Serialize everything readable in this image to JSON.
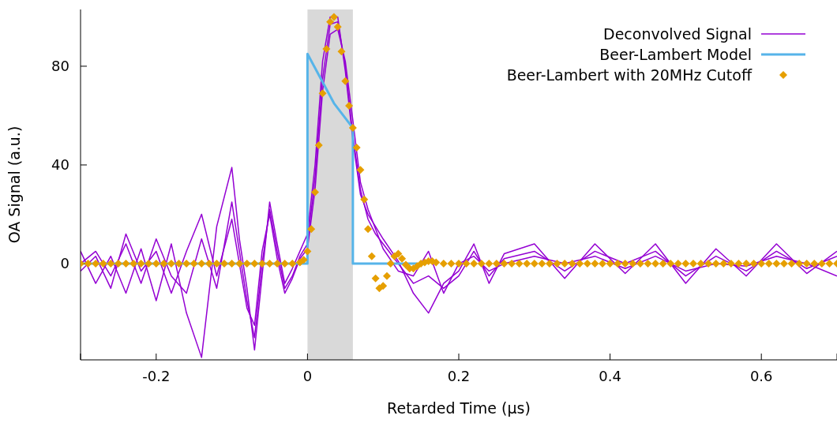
{
  "chart_data": {
    "type": "line",
    "xlabel": "Retarded Time (µs)",
    "ylabel": "OA Signal (a.u.)",
    "xlim": [
      -0.3,
      0.7
    ],
    "xticks": [
      {
        "value": -0.3,
        "label": null
      },
      -0.2,
      0,
      0.2,
      0.4,
      0.6,
      {
        "value": 0.7,
        "label": null
      }
    ],
    "ylim": [
      -39,
      103
    ],
    "yticks": [
      0,
      40,
      80
    ],
    "grid": false,
    "legend": "top right",
    "marker": "none",
    "bands": [
      {
        "axis": "x",
        "from": 0,
        "to": 0.06,
        "color": "#d9d9d9"
      }
    ],
    "series": [
      {
        "name": "Deconvolved Signal",
        "color": "#9400d3",
        "x": [
          -0.3,
          -0.28,
          -0.26,
          -0.24,
          -0.22,
          -0.2,
          -0.18,
          -0.16,
          -0.14,
          -0.12,
          -0.1,
          -0.09,
          -0.08,
          -0.07,
          -0.06,
          -0.05,
          -0.04,
          -0.03,
          -0.02,
          -0.01,
          0,
          0.01,
          0.02,
          0.03,
          0.04,
          0.05,
          0.06,
          0.07,
          0.08,
          0.09,
          0.1,
          0.12,
          0.14,
          0.16,
          0.18,
          0.2,
          0.22,
          0.24,
          0.26,
          0.3,
          0.34,
          0.38,
          0.42,
          0.46,
          0.5,
          0.54,
          0.58,
          0.62,
          0.66,
          0.7
        ],
        "values": [
          0,
          5,
          -5,
          8,
          -8,
          10,
          -5,
          -12,
          10,
          -10,
          25,
          5,
          -15,
          -30,
          0,
          22,
          5,
          -10,
          -5,
          3,
          8,
          35,
          75,
          97,
          98,
          80,
          52,
          30,
          18,
          12,
          8,
          0,
          -8,
          -5,
          -10,
          -5,
          5,
          -5,
          2,
          5,
          -3,
          5,
          0,
          5,
          -5,
          3,
          -3,
          5,
          -2,
          3
        ]
      },
      {
        "color": "#9400d3",
        "x": [
          -0.3,
          -0.28,
          -0.26,
          -0.24,
          -0.22,
          -0.2,
          -0.18,
          -0.16,
          -0.14,
          -0.12,
          -0.1,
          -0.09,
          -0.08,
          -0.07,
          -0.06,
          -0.05,
          -0.04,
          -0.03,
          -0.02,
          -0.01,
          0,
          0.01,
          0.02,
          0.03,
          0.04,
          0.05,
          0.06,
          0.07,
          0.08,
          0.09,
          0.1,
          0.12,
          0.14,
          0.16,
          0.18,
          0.2,
          0.22,
          0.24,
          0.26,
          0.3,
          0.34,
          0.38,
          0.42,
          0.46,
          0.5,
          0.54,
          0.58,
          0.62,
          0.66,
          0.7
        ],
        "values": [
          5,
          -8,
          3,
          -12,
          6,
          -15,
          8,
          -20,
          -38,
          15,
          39,
          10,
          -10,
          -35,
          -5,
          25,
          8,
          -8,
          -2,
          5,
          12,
          40,
          82,
          100,
          100,
          78,
          50,
          28,
          20,
          15,
          10,
          1,
          -12,
          -20,
          -8,
          -3,
          8,
          -8,
          4,
          8,
          -6,
          8,
          -4,
          8,
          -8,
          6,
          -5,
          8,
          -4,
          5
        ]
      },
      {
        "color": "#9400d3",
        "x": [
          -0.3,
          -0.28,
          -0.26,
          -0.24,
          -0.22,
          -0.2,
          -0.18,
          -0.16,
          -0.14,
          -0.12,
          -0.1,
          -0.09,
          -0.08,
          -0.07,
          -0.06,
          -0.05,
          -0.04,
          -0.03,
          -0.02,
          -0.01,
          0,
          0.01,
          0.02,
          0.03,
          0.04,
          0.05,
          0.06,
          0.07,
          0.08,
          0.09,
          0.1,
          0.12,
          0.14,
          0.16,
          0.18,
          0.2,
          0.22,
          0.24,
          0.26,
          0.3,
          0.34,
          0.38,
          0.42,
          0.46,
          0.5,
          0.54,
          0.58,
          0.62,
          0.66,
          0.7
        ],
        "values": [
          -3,
          3,
          -10,
          12,
          -3,
          5,
          -12,
          5,
          20,
          -5,
          18,
          0,
          -18,
          -25,
          5,
          20,
          2,
          -12,
          -6,
          2,
          6,
          30,
          70,
          93,
          95,
          82,
          58,
          33,
          22,
          14,
          6,
          -3,
          -5,
          5,
          -12,
          0,
          3,
          -3,
          0,
          3,
          0,
          3,
          -2,
          3,
          -3,
          0,
          -1,
          3,
          0,
          -5
        ]
      },
      {
        "name": "Beer-Lambert Model",
        "color": "#56b4e9",
        "x": [
          -0.3,
          0,
          0,
          0.035,
          0.06,
          0.06,
          0.145
        ],
        "values": [
          0,
          0,
          85,
          65,
          55,
          0,
          0
        ]
      },
      {
        "name": "Beer-Lambert with 20MHz Cutoff",
        "type": "scatter",
        "marker": "diamond",
        "color": "#e69f00",
        "x": [
          -0.3,
          -0.29,
          -0.28,
          -0.27,
          -0.26,
          -0.25,
          -0.24,
          -0.23,
          -0.22,
          -0.21,
          -0.2,
          -0.19,
          -0.18,
          -0.17,
          -0.16,
          -0.15,
          -0.14,
          -0.13,
          -0.12,
          -0.11,
          -0.1,
          -0.09,
          -0.08,
          -0.07,
          -0.06,
          -0.05,
          -0.04,
          -0.03,
          -0.02,
          -0.01,
          -0.005,
          0,
          0.005,
          0.01,
          0.015,
          0.02,
          0.025,
          0.03,
          0.035,
          0.04,
          0.045,
          0.05,
          0.055,
          0.06,
          0.065,
          0.07,
          0.075,
          0.08,
          0.085,
          0.09,
          0.095,
          0.1,
          0.105,
          0.11,
          0.115,
          0.12,
          0.125,
          0.13,
          0.135,
          0.14,
          0.145,
          0.15,
          0.155,
          0.16,
          0.165,
          0.17,
          0.18,
          0.19,
          0.2,
          0.21,
          0.22,
          0.23,
          0.24,
          0.25,
          0.26,
          0.27,
          0.28,
          0.29,
          0.3,
          0.31,
          0.32,
          0.33,
          0.34,
          0.35,
          0.36,
          0.37,
          0.38,
          0.39,
          0.4,
          0.41,
          0.42,
          0.43,
          0.44,
          0.45,
          0.46,
          0.47,
          0.48,
          0.49,
          0.5,
          0.51,
          0.52,
          0.53,
          0.54,
          0.55,
          0.56,
          0.57,
          0.58,
          0.59,
          0.6,
          0.61,
          0.62,
          0.63,
          0.64,
          0.65,
          0.66,
          0.67,
          0.68,
          0.69,
          0.7
        ],
        "values": [
          0,
          0,
          0,
          0,
          0,
          0,
          0,
          0,
          0,
          0,
          0,
          0,
          0,
          0,
          0,
          0,
          0,
          0,
          0,
          0,
          0,
          0,
          0,
          0,
          0,
          0,
          0,
          0,
          0,
          0.5,
          1.5,
          5,
          14,
          29,
          48,
          69,
          87,
          98,
          100,
          96,
          86,
          74,
          64,
          55,
          47,
          38,
          26,
          14,
          3,
          -6,
          -10,
          -9,
          -5,
          0,
          3,
          4,
          2,
          -0.5,
          -2,
          -2,
          -1,
          0,
          0.5,
          1,
          1,
          0.5,
          0,
          0,
          0,
          0,
          0,
          0,
          0,
          0,
          0,
          0,
          0,
          0,
          0,
          0,
          0,
          0,
          0,
          0,
          0,
          0,
          0,
          0,
          0,
          0,
          0,
          0,
          0,
          0,
          0,
          0,
          0,
          0,
          0,
          0,
          0,
          0,
          0,
          0,
          0,
          0,
          0,
          0,
          0,
          0,
          0,
          0,
          0,
          0,
          0,
          0,
          0,
          0,
          0
        ]
      }
    ]
  }
}
